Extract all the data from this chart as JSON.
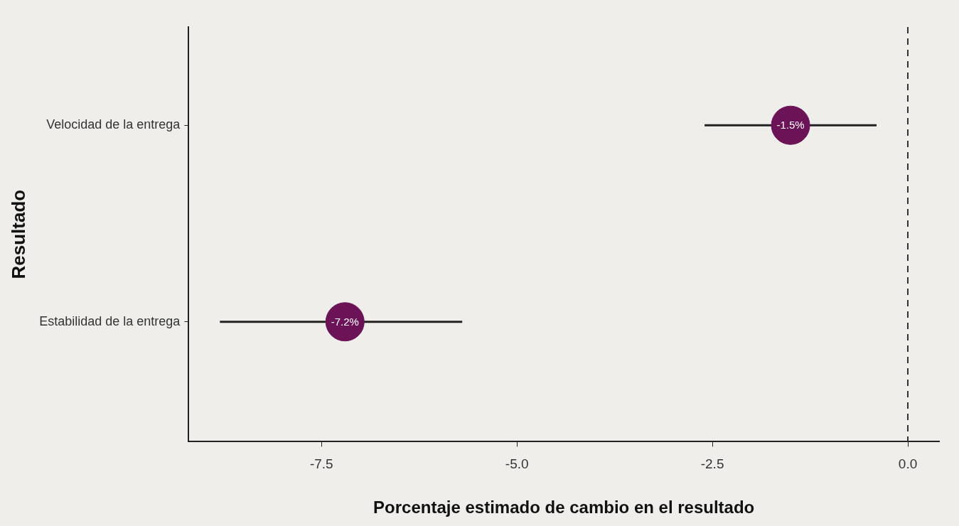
{
  "chart_data": {
    "type": "scatter",
    "orientation": "horizontal",
    "categories": [
      "Velocidad de la entrega",
      "Estabilidad de la entrega"
    ],
    "values": [
      -1.5,
      -7.2
    ],
    "errors": [
      [
        -2.6,
        -0.4
      ],
      [
        -8.8,
        -5.7
      ]
    ],
    "value_labels": [
      "-1.5%",
      "-7.2%"
    ],
    "color": "#6b1356",
    "marker": "circle",
    "xlim": [
      -9.2,
      0.4
    ],
    "xticks": [
      -7.5,
      {
        "value": -5,
        "label": "-5.0"
      },
      -2.5,
      {
        "value": 0,
        "label": "0.0"
      }
    ],
    "xlabel": "Porcentaje estimado de cambio en el resultado",
    "ylabel": "Resultado",
    "ref_lines": [
      {
        "axis": "x",
        "value": 0,
        "line_style": "dashed",
        "color": "#333333"
      }
    ]
  }
}
